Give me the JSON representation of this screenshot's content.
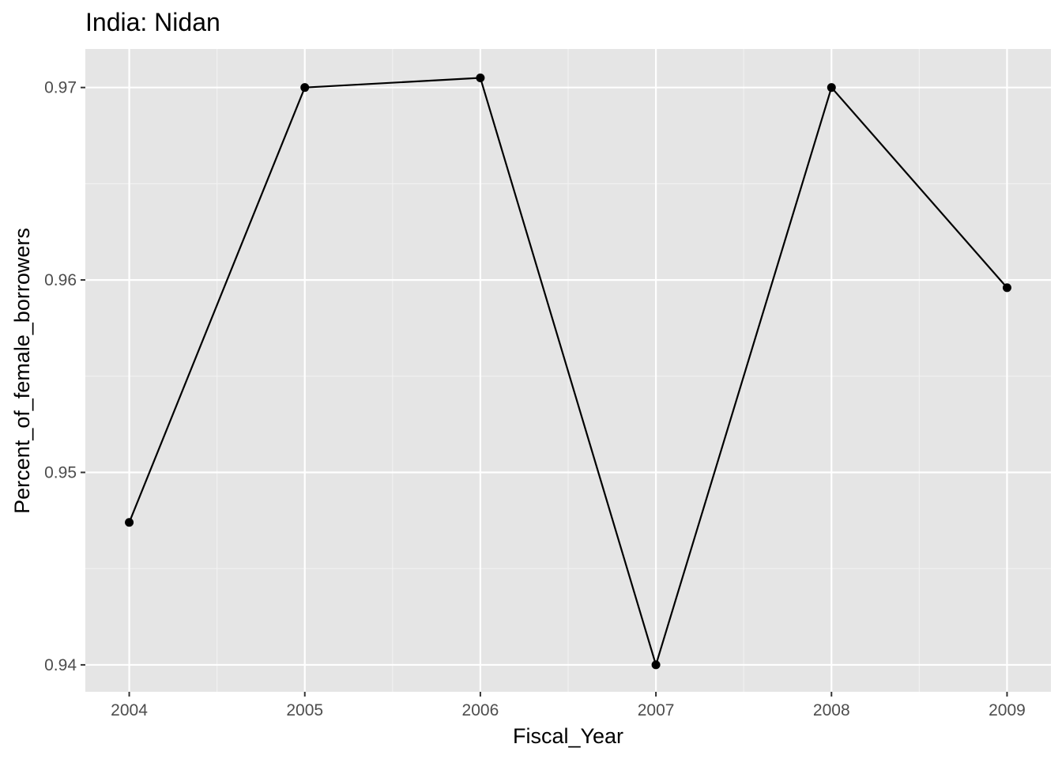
{
  "chart_data": {
    "type": "line",
    "title": "India:  Nidan",
    "xlabel": "Fiscal_Year",
    "ylabel": "Percent_of_female_borrowers",
    "x": [
      2004,
      2005,
      2006,
      2007,
      2008,
      2009
    ],
    "series": [
      {
        "values": [
          0.9474,
          0.97,
          0.9705,
          0.94,
          0.97,
          0.9596
        ]
      }
    ],
    "xticks": [
      "2004",
      "2005",
      "2006",
      "2007",
      "2008",
      "2009"
    ],
    "yticks": [
      "0.94",
      "0.95",
      "0.96",
      "0.97"
    ],
    "xlim": [
      2003.75,
      2009.25
    ],
    "ylim": [
      0.9386,
      0.972
    ],
    "grid": true,
    "colors": {
      "panel_background": "#e5e5e5",
      "grid_major": "#ffffff",
      "grid_minor": "#f2f2f2",
      "line": "#000000",
      "points": "#000000",
      "tick_text": "#4d4d4d"
    }
  }
}
